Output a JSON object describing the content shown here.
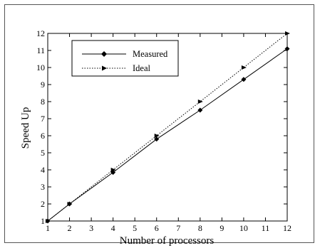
{
  "chart_data": {
    "type": "line",
    "title": "",
    "xlabel": "Number of processors",
    "ylabel": "Speed Up",
    "xlim": [
      1,
      12
    ],
    "ylim": [
      1,
      12
    ],
    "xticks": [
      1,
      2,
      3,
      4,
      5,
      6,
      7,
      8,
      9,
      10,
      11,
      12
    ],
    "yticks": [
      1,
      2,
      3,
      4,
      5,
      6,
      7,
      8,
      9,
      10,
      11,
      12
    ],
    "grid": false,
    "legend_position": "top-left",
    "series": [
      {
        "name": "Measured",
        "style": "solid",
        "marker": "diamond",
        "color": "#000000",
        "x": [
          1,
          2,
          4,
          6,
          8,
          10,
          12
        ],
        "y": [
          1,
          2,
          3.85,
          5.8,
          7.5,
          9.3,
          11.1
        ]
      },
      {
        "name": "Ideal",
        "style": "dotted",
        "marker": "triangle-right",
        "color": "#000000",
        "x": [
          1,
          2,
          4,
          6,
          8,
          10,
          12
        ],
        "y": [
          1,
          2,
          4,
          6,
          8,
          10,
          12
        ]
      }
    ]
  }
}
